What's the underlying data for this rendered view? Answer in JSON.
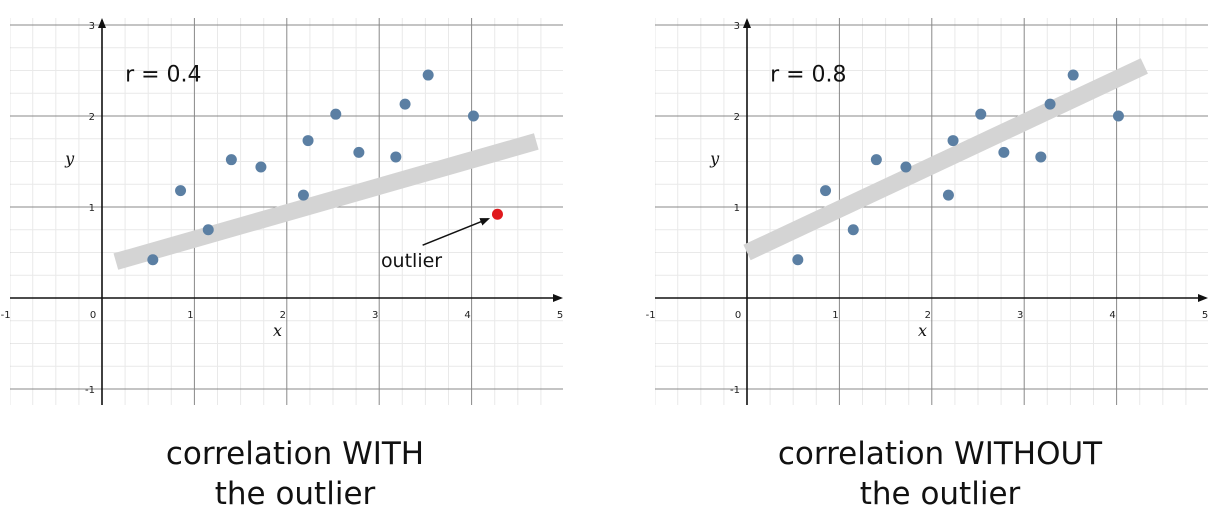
{
  "colors": {
    "point": "#5b7fa3",
    "outlier": "#e0191d",
    "trend": "#d4d4d4",
    "grid_minor": "#e9e9e9",
    "grid_major": "#888888",
    "axis": "#111111"
  },
  "chart_data": [
    {
      "type": "scatter",
      "annotation": "r = 0.4",
      "xlabel": "x",
      "ylabel": "y",
      "xlim": [
        -1,
        5
      ],
      "ylim": [
        -1,
        3
      ],
      "x_ticks": [
        "-1",
        "0",
        "1",
        "2",
        "3",
        "4",
        "5"
      ],
      "y_ticks": [
        "-1",
        "1",
        "2",
        "3"
      ],
      "points": [
        {
          "x": 0.55,
          "y": 0.42
        },
        {
          "x": 0.85,
          "y": 1.18
        },
        {
          "x": 1.15,
          "y": 0.75
        },
        {
          "x": 1.4,
          "y": 1.52
        },
        {
          "x": 1.72,
          "y": 1.44
        },
        {
          "x": 2.18,
          "y": 1.13
        },
        {
          "x": 2.23,
          "y": 1.73
        },
        {
          "x": 2.53,
          "y": 2.02
        },
        {
          "x": 2.78,
          "y": 1.6
        },
        {
          "x": 3.18,
          "y": 1.55
        },
        {
          "x": 3.28,
          "y": 2.13
        },
        {
          "x": 3.53,
          "y": 2.45
        },
        {
          "x": 4.02,
          "y": 2.0
        }
      ],
      "outlier": {
        "x": 4.28,
        "y": 0.92,
        "label": "outlier"
      },
      "trend_line": {
        "x": [
          0.15,
          4.7
        ],
        "y": [
          0.4,
          1.72
        ]
      },
      "caption": [
        "correlation WITH",
        "the outlier"
      ]
    },
    {
      "type": "scatter",
      "annotation": "r = 0.8",
      "xlabel": "x",
      "ylabel": "y",
      "xlim": [
        -1,
        5
      ],
      "ylim": [
        -1,
        3
      ],
      "x_ticks": [
        "-1",
        "0",
        "1",
        "2",
        "3",
        "4",
        "5"
      ],
      "y_ticks": [
        "-1",
        "1",
        "2",
        "3"
      ],
      "points": [
        {
          "x": 0.55,
          "y": 0.42
        },
        {
          "x": 0.85,
          "y": 1.18
        },
        {
          "x": 1.15,
          "y": 0.75
        },
        {
          "x": 1.4,
          "y": 1.52
        },
        {
          "x": 1.72,
          "y": 1.44
        },
        {
          "x": 2.18,
          "y": 1.13
        },
        {
          "x": 2.23,
          "y": 1.73
        },
        {
          "x": 2.53,
          "y": 2.02
        },
        {
          "x": 2.78,
          "y": 1.6
        },
        {
          "x": 3.18,
          "y": 1.55
        },
        {
          "x": 3.28,
          "y": 2.13
        },
        {
          "x": 3.53,
          "y": 2.45
        },
        {
          "x": 4.02,
          "y": 2.0
        }
      ],
      "outlier": null,
      "trend_line": {
        "x": [
          0.0,
          4.3
        ],
        "y": [
          0.5,
          2.55
        ]
      },
      "caption": [
        "correlation WITHOUT",
        "the outlier"
      ]
    }
  ]
}
